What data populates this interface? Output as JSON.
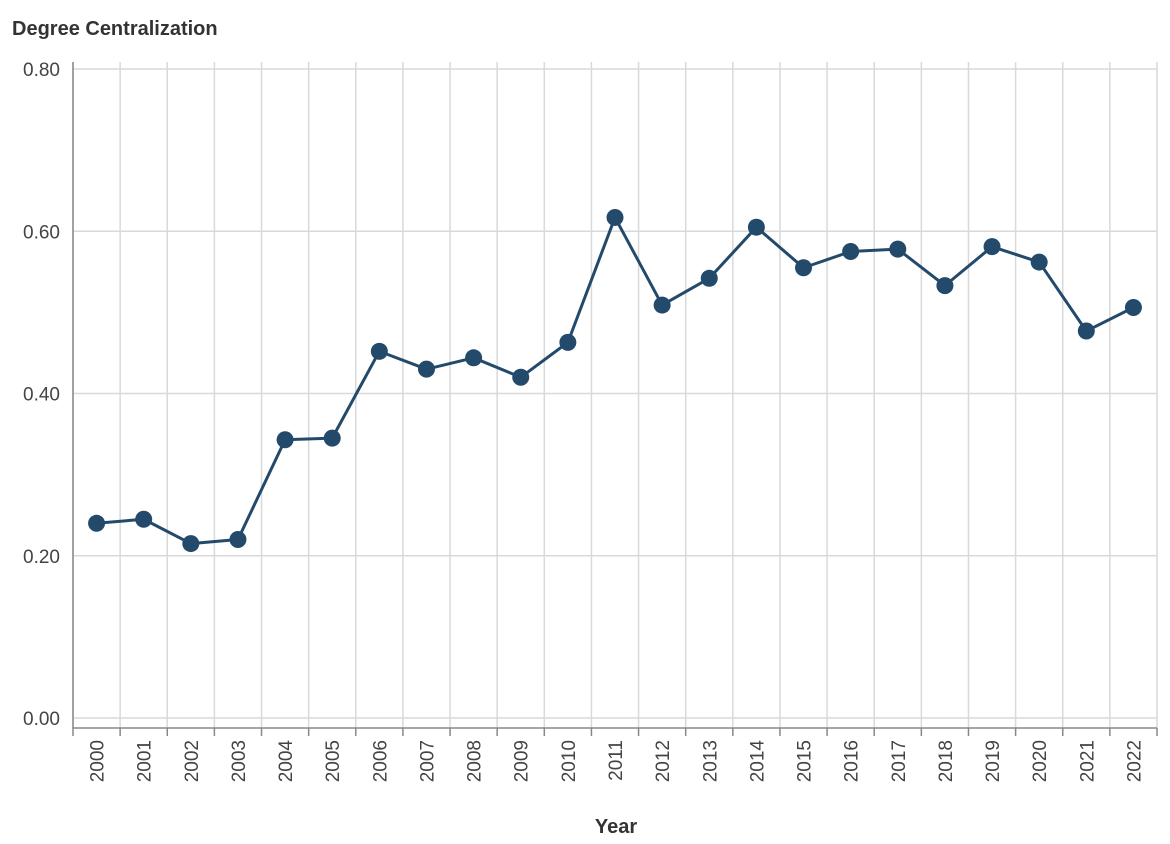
{
  "chart_data": {
    "type": "line",
    "title": "",
    "ylabel": "Degree Centralization",
    "xlabel": "Year",
    "ylim": [
      0,
      0.8
    ],
    "y_ticks": [
      "0.00",
      "0.20",
      "0.40",
      "0.60",
      "0.80"
    ],
    "y_tick_values": [
      0,
      0.2,
      0.4,
      0.6,
      0.8
    ],
    "grid": true,
    "x": [
      "2000",
      "2001",
      "2002",
      "2003",
      "2004",
      "2005",
      "2006",
      "2007",
      "2008",
      "2009",
      "2010",
      "2011",
      "2012",
      "2013",
      "2014",
      "2015",
      "2016",
      "2017",
      "2018",
      "2019",
      "2020",
      "2021",
      "2022"
    ],
    "series": [
      {
        "name": "",
        "color": "#234a6b",
        "values": [
          0.24,
          0.245,
          0.215,
          0.22,
          0.343,
          0.345,
          0.452,
          0.43,
          0.444,
          0.42,
          0.463,
          0.617,
          0.509,
          0.542,
          0.605,
          0.555,
          0.575,
          0.578,
          0.533,
          0.581,
          0.562,
          0.477,
          0.506
        ]
      }
    ]
  }
}
